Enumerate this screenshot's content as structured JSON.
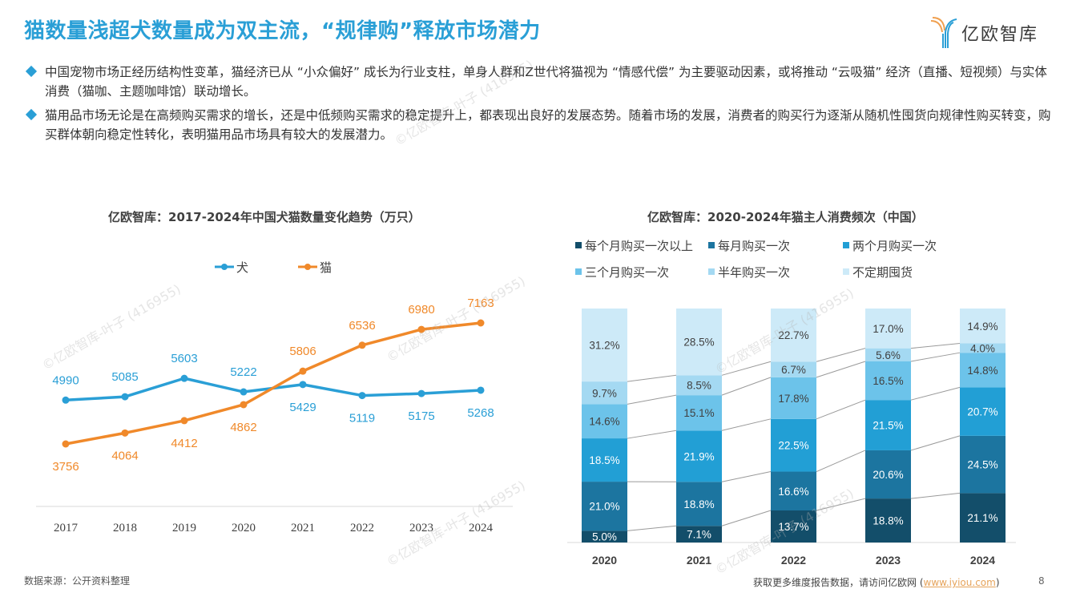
{
  "header": {
    "title": "猫数量浅超犬数量成为双主流，“规律购”释放市场潜力",
    "logo_text": "亿欧智库"
  },
  "bullets": [
    "中国宠物市场正经历结构性变革，猫经济已从 “小众偏好” 成长为行业支柱，单身人群和Z世代将猫视为 “情感代偿” 为主要驱动因素，或将推动 “云吸猫” 经济（直播、短视频）与实体消费（猫咖、主题咖啡馆）联动增长。",
    "猫用品市场无论是在高频购买需求的增长，还是中低频购买需求的稳定提升上，都表现出良好的发展态势。随着市场的发展，消费者的购买行为逐渐从随机性囤货向规律性购买转变，购买群体朝向稳定性转化，表明猫用品市场具有较大的发展潜力。"
  ],
  "watermark": "©亿欧智库-叶子 (416955)",
  "source": "数据来源：公开资料整理",
  "footer": {
    "text": "获取更多维度报告数据，请访问亿欧网 (",
    "link": "www.iyiou.com",
    "close": ")",
    "page": "8"
  },
  "chart_data": [
    {
      "type": "line",
      "title": "亿欧智库：2017-2024年中国犬猫数量变化趋势（万只）",
      "xlabel": "",
      "ylabel": "",
      "categories": [
        "2017",
        "2018",
        "2019",
        "2020",
        "2021",
        "2022",
        "2023",
        "2024"
      ],
      "series": [
        {
          "name": "犬",
          "color": "#2a9fd6",
          "values": [
            4990,
            5085,
            5603,
            5222,
            5429,
            5119,
            5175,
            5268
          ]
        },
        {
          "name": "猫",
          "color": "#f0892a",
          "values": [
            3756,
            4064,
            4412,
            4862,
            5806,
            6536,
            6980,
            7163
          ]
        }
      ],
      "ylim": [
        3000,
        7500
      ],
      "grid": false,
      "legend": "top-center"
    },
    {
      "type": "bar",
      "stacked": true,
      "title": "亿欧智库：2020-2024年猫主人消费频次（中国）",
      "categories": [
        "2020",
        "2021",
        "2022",
        "2023",
        "2024"
      ],
      "series": [
        {
          "name": "每个月购买一次以上",
          "color": "#134e6a",
          "values": [
            5.0,
            7.1,
            13.7,
            18.8,
            21.1
          ]
        },
        {
          "name": "每月购买一次",
          "color": "#1c75a0",
          "values": [
            21.0,
            18.8,
            16.6,
            20.6,
            24.5
          ]
        },
        {
          "name": "两个月购买一次",
          "color": "#229fd5",
          "values": [
            18.5,
            21.9,
            22.5,
            21.5,
            20.7
          ]
        },
        {
          "name": "三个月购买一次",
          "color": "#6cc3ea",
          "values": [
            14.6,
            15.1,
            17.8,
            16.5,
            14.8
          ]
        },
        {
          "name": "半年购买一次",
          "color": "#a4d9f2",
          "values": [
            9.7,
            8.5,
            6.7,
            5.6,
            4.0
          ]
        },
        {
          "name": "不定期囤货",
          "color": "#cdeaf8",
          "values": [
            31.2,
            28.5,
            22.7,
            17.0,
            14.9
          ]
        }
      ],
      "unit": "%",
      "ylim": [
        0,
        100
      ],
      "grid": false,
      "legend": "top"
    }
  ]
}
